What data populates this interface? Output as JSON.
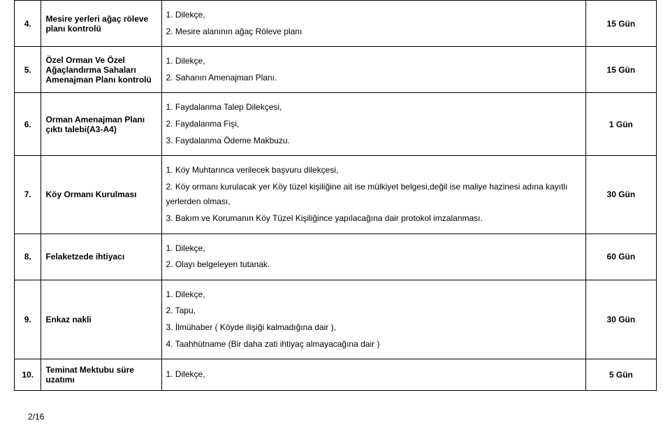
{
  "rows": [
    {
      "num": "4.",
      "service": "Mesire yerleri ağaç röleve planı kontrolü",
      "docs": [
        "1. Dilekçe,",
        "2. Mesire alanının ağaç Röleve planı"
      ],
      "days": "15 Gün"
    },
    {
      "num": "5.",
      "service": "Özel Orman Ve Özel Ağaçlandırma Sahaları Amenajman Planı kontrolü",
      "docs": [
        "1. Dilekçe,",
        "2. Sahanın Amenajman Planı."
      ],
      "days": "15 Gün"
    },
    {
      "num": "6.",
      "service": "Orman Amenajman Planı çıktı talebi(A3-A4)",
      "docs": [
        "1. Faydalanma Talep Dilekçesi,",
        "2. Faydalanma Fişi,",
        "3. Faydalanma Ödeme Makbuzu."
      ],
      "days": "1 Gün"
    },
    {
      "num": "7.",
      "service": "Köy Ormanı Kurulması",
      "docs": [
        "1.  Köy Muhtarınca verilecek başvuru dilekçesi,",
        "2.  Köy ormanı kurulacak yer Köy tüzel kişiliğine ait ise mülkiyet belgesi,değil ise maliye hazinesi adına kayıtlı yerlerden olması,",
        "3.  Bakım ve Korumanın Köy Tüzel Kişiliğince yapılacağına dair protokol imzalanması."
      ],
      "days": "30 Gün"
    },
    {
      "num": "8.",
      "service": "Felaketzede ihtiyacı",
      "docs": [
        "1.  Dilekçe,",
        "2.  Olayı belgeleyen tutanak."
      ],
      "days": "60 Gün"
    },
    {
      "num": "9.",
      "service": "Enkaz nakli",
      "docs": [
        "1. Dilekçe,",
        "2.  Tapu,",
        "3.  İlmühaber ( Köyde ilişiği kalmadığına dair ),",
        "4.  Taahhütname (Bir daha zati ihtiyaç almayacağına dair )"
      ],
      "days": "30 Gün"
    },
    {
      "num": "10.",
      "service": "Teminat Mektubu süre uzatımı",
      "docs": [
        "1. Dilekçe,"
      ],
      "days": "5 Gün"
    }
  ],
  "footer": "2/16"
}
